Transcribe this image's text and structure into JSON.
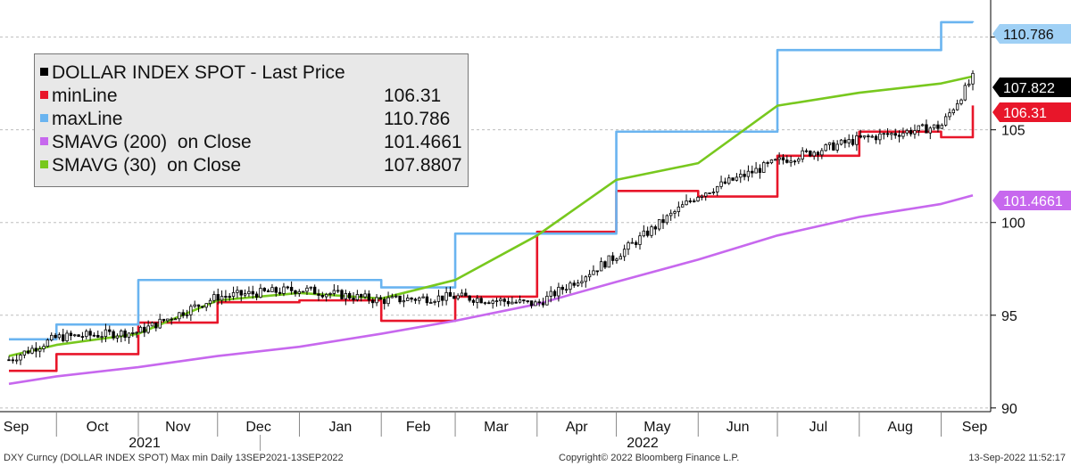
{
  "chart_data": {
    "type": "line",
    "title": "DOLLAR INDEX SPOT - Last Price",
    "ylim": [
      89.8,
      112.0
    ],
    "yticks": [
      90,
      95,
      100,
      105,
      110
    ],
    "x_months": [
      "Sep",
      "Oct",
      "Nov",
      "Dec",
      "Jan",
      "Feb",
      "Mar",
      "Apr",
      "May",
      "Jun",
      "Jul",
      "Aug",
      "Sep"
    ],
    "x_years": [
      "2021",
      "2022"
    ],
    "grid": "dashed horizontal",
    "legend_placement": "top-left",
    "x_dates": [
      "2021-09-13",
      "2021-10-01",
      "2021-11-01",
      "2021-12-01",
      "2022-01-01",
      "2022-02-01",
      "2022-03-01",
      "2022-04-01",
      "2022-05-01",
      "2022-06-01",
      "2022-07-01",
      "2022-08-01",
      "2022-09-01",
      "2022-09-13"
    ],
    "series": [
      {
        "name": "DOLLAR INDEX SPOT - Last Price",
        "color": "#000000",
        "last": "107.822",
        "values": [
          92.6,
          93.8,
          94.1,
          96.0,
          96.4,
          95.8,
          96.0,
          95.6,
          98.2,
          101.5,
          103.3,
          104.5,
          105.2,
          107.8
        ]
      },
      {
        "name": "minLine",
        "color": "#e8162a",
        "last": "106.31",
        "values": [
          92.0,
          92.9,
          94.6,
          95.7,
          95.8,
          94.7,
          96.0,
          99.5,
          101.7,
          101.4,
          103.6,
          104.9,
          104.6,
          106.31
        ]
      },
      {
        "name": "maxLine",
        "color": "#6ab4f0",
        "last": "110.786",
        "values": [
          93.7,
          94.5,
          96.9,
          96.9,
          96.9,
          96.5,
          99.4,
          99.4,
          104.9,
          104.9,
          109.3,
          109.3,
          110.8,
          110.786
        ]
      },
      {
        "name": "SMAVG (200)  on Close",
        "color": "#c768ee",
        "last": "101.4661",
        "values": [
          91.3,
          91.7,
          92.2,
          92.8,
          93.3,
          94.0,
          94.7,
          95.6,
          96.8,
          98.0,
          99.3,
          100.3,
          101.0,
          101.4661
        ]
      },
      {
        "name": "SMAVG (30)  on Close",
        "color": "#78c81e",
        "last": "107.8807",
        "values": [
          92.8,
          93.4,
          94.0,
          95.8,
          96.2,
          95.9,
          96.9,
          99.3,
          102.3,
          103.2,
          106.3,
          107.0,
          107.5,
          107.8807
        ]
      }
    ]
  },
  "legend": {
    "title": "DOLLAR INDEX SPOT - Last Price",
    "rows": [
      {
        "label": "minLine",
        "value": "106.31",
        "color": "#e8162a"
      },
      {
        "label": "maxLine",
        "value": "110.786",
        "color": "#6ab4f0"
      },
      {
        "label": "SMAVG (200)  on Close",
        "value": "101.4661",
        "color": "#c768ee"
      },
      {
        "label": "SMAVG (30)  on Close",
        "value": "107.8807",
        "color": "#78c81e"
      }
    ]
  },
  "tags": {
    "max": "110.786",
    "last": "107.822",
    "min": "106.31",
    "sma200": "101.4661"
  },
  "footer": {
    "left": "DXY Curncy (DOLLAR INDEX SPOT) Max min  Daily 13SEP2021-13SEP2022",
    "center": "Copyright© 2022 Bloomberg Finance L.P.",
    "right": "13-Sep-2022 11:52:17"
  }
}
